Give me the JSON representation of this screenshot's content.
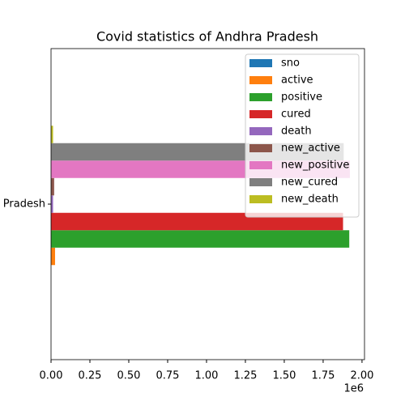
{
  "chart_data": {
    "type": "barh",
    "title": "Covid statistics of Andhra Pradesh",
    "categories": [
      "Andhra Pradesh"
    ],
    "series": [
      {
        "name": "sno",
        "color": "#1f77b4",
        "values": [
          2
        ]
      },
      {
        "name": "active",
        "color": "#ff7f0e",
        "values": [
          26000
        ]
      },
      {
        "name": "positive",
        "color": "#2ca02c",
        "values": [
          1918000
        ]
      },
      {
        "name": "cured",
        "color": "#d62728",
        "values": [
          1878000
        ]
      },
      {
        "name": "death",
        "color": "#9467bd",
        "values": [
          13000
        ]
      },
      {
        "name": "new_active",
        "color": "#8c564b",
        "values": [
          20000
        ]
      },
      {
        "name": "new_positive",
        "color": "#e377c2",
        "values": [
          1922000
        ]
      },
      {
        "name": "new_cured",
        "color": "#7f7f7f",
        "values": [
          1882000
        ]
      },
      {
        "name": "new_death",
        "color": "#bcbd22",
        "values": [
          13000
        ]
      }
    ],
    "xlim": [
      0,
      2016000
    ],
    "xticks": [
      {
        "value": 0,
        "label": "0.00"
      },
      {
        "value": 250000,
        "label": "0.25"
      },
      {
        "value": 500000,
        "label": "0.50"
      },
      {
        "value": 750000,
        "label": "0.75"
      },
      {
        "value": 1000000,
        "label": "1.00"
      },
      {
        "value": 1250000,
        "label": "1.25"
      },
      {
        "value": 1500000,
        "label": "1.50"
      },
      {
        "value": 1750000,
        "label": "1.75"
      },
      {
        "value": 2000000,
        "label": "2.00"
      }
    ],
    "x_offset_label": "1e6",
    "legend": "upper right",
    "grid": false
  }
}
